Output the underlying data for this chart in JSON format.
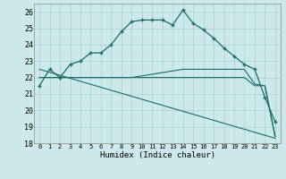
{
  "xlabel": "Humidex (Indice chaleur)",
  "xlim": [
    -0.5,
    23.5
  ],
  "ylim": [
    18,
    26.5
  ],
  "yticks": [
    18,
    19,
    20,
    21,
    22,
    23,
    24,
    25,
    26
  ],
  "xticks": [
    0,
    1,
    2,
    3,
    4,
    5,
    6,
    7,
    8,
    9,
    10,
    11,
    12,
    13,
    14,
    15,
    16,
    17,
    18,
    19,
    20,
    21,
    22,
    23
  ],
  "bg_color": "#cde8ea",
  "grid_color": "#aacfd4",
  "line_color": "#1a6b6b",
  "series": {
    "main": {
      "x": [
        0,
        1,
        2,
        3,
        4,
        5,
        6,
        7,
        8,
        9,
        10,
        11,
        12,
        13,
        14,
        15,
        16,
        17,
        18,
        19,
        20,
        21,
        22,
        23
      ],
      "y": [
        21.5,
        22.5,
        22.0,
        22.8,
        23.0,
        23.5,
        23.5,
        24.0,
        24.8,
        25.4,
        25.5,
        25.5,
        25.5,
        25.2,
        26.1,
        25.3,
        24.9,
        24.4,
        23.8,
        23.3,
        22.8,
        22.5,
        20.8,
        19.3
      ]
    },
    "diagonal": {
      "x": [
        0,
        23
      ],
      "y": [
        22.5,
        18.3
      ]
    },
    "flat1": {
      "x": [
        0,
        1,
        2,
        3,
        4,
        5,
        6,
        7,
        8,
        9,
        10,
        11,
        12,
        13,
        14,
        15,
        16,
        17,
        18,
        19,
        20,
        21,
        22,
        23
      ],
      "y": [
        22.0,
        22.0,
        22.0,
        22.0,
        22.0,
        22.0,
        22.0,
        22.0,
        22.0,
        22.0,
        22.1,
        22.2,
        22.3,
        22.4,
        22.5,
        22.5,
        22.5,
        22.5,
        22.5,
        22.5,
        22.5,
        21.6,
        21.5,
        18.4
      ]
    },
    "flat2": {
      "x": [
        0,
        1,
        2,
        3,
        4,
        5,
        6,
        7,
        8,
        9,
        10,
        11,
        12,
        13,
        14,
        15,
        16,
        17,
        18,
        19,
        20,
        21,
        22,
        23
      ],
      "y": [
        22.0,
        22.0,
        22.0,
        22.0,
        22.0,
        22.0,
        22.0,
        22.0,
        22.0,
        22.0,
        22.0,
        22.0,
        22.0,
        22.0,
        22.0,
        22.0,
        22.0,
        22.0,
        22.0,
        22.0,
        22.0,
        21.5,
        21.5,
        18.4
      ]
    }
  }
}
